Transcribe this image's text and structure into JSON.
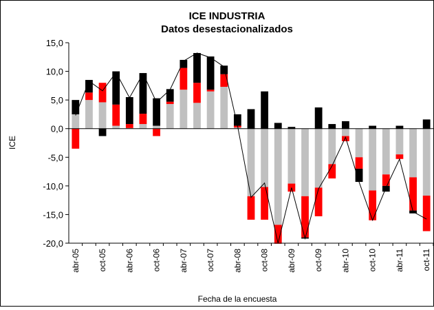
{
  "chart_data": {
    "type": "bar",
    "title": "ICE INDUSTRIA",
    "subtitle": "Datos desestacionalizados",
    "y_label": "ICE",
    "x_label": "Fecha de la encuesta",
    "categories": [
      "abr-05",
      null,
      "oct-05",
      null,
      "abr-06",
      null,
      "oct-06",
      null,
      "abr-07",
      null,
      "oct-07",
      null,
      "abr-08",
      null,
      "oct-08",
      null,
      "abr-09",
      null,
      "oct-09",
      null,
      "abr-10",
      null,
      "oct-10",
      null,
      "abr-11",
      null,
      "oct-11"
    ],
    "series": [
      {
        "type": "bar",
        "color": "#c0c0c0",
        "values": [
          2.5,
          5,
          4.6,
          0.5,
          0.1,
          0.8,
          0.5,
          4.3,
          6.8,
          4.5,
          6.5,
          7.3,
          0.2,
          -11.8,
          -10.2,
          -16.8,
          -9.6,
          -11.8,
          -10.3,
          -6.2,
          -1.3,
          -5,
          -10.8,
          -8,
          -4.5,
          -8.5,
          -11.7
        ]
      },
      {
        "type": "bar",
        "color": "#ff0000",
        "values": [
          -3.5,
          1.3,
          3.4,
          3.7,
          0.7,
          1.8,
          -1.3,
          0.4,
          3.8,
          3.5,
          0.3,
          2.2,
          0.3,
          -4.1,
          -5.7,
          -3.3,
          -1.4,
          -7.2,
          -5,
          -2.5,
          -0.9,
          -2,
          -5.2,
          -2,
          -0.8,
          -5.8,
          -6.2
        ]
      },
      {
        "type": "bar",
        "color": "#000000",
        "values": [
          2.5,
          2.2,
          -1.3,
          5.8,
          4.7,
          7.1,
          4.8,
          2.2,
          1.4,
          5.2,
          5.8,
          1.5,
          2,
          3.4,
          6.5,
          1,
          0.3,
          -0.2,
          3.7,
          0.8,
          1.3,
          -2.3,
          0.5,
          -1,
          0.5,
          -0.5,
          1.6
        ]
      },
      {
        "type": "line",
        "color": "#000000",
        "values": [
          2.3,
          8.3,
          6.6,
          9.8,
          5.4,
          9.6,
          4.6,
          6.8,
          11.8,
          13.2,
          12.4,
          10.8,
          0.5,
          -12,
          -9.5,
          -20,
          -10.3,
          -19.2,
          -10.5,
          -6.5,
          -1.5,
          -9.3,
          -16,
          -10.3,
          -5.3,
          -14.5,
          -15.8
        ]
      }
    ],
    "ylim": [
      -20,
      15
    ],
    "yticks": [
      {
        "value": -20,
        "label": "-20,0"
      },
      {
        "value": -15,
        "label": "-15,0"
      },
      {
        "value": -10,
        "label": "-10,0"
      },
      {
        "value": -5,
        "label": "-5,0"
      },
      {
        "value": 0,
        "label": "0,0"
      },
      {
        "value": 5,
        "label": "5,0"
      },
      {
        "value": 10,
        "label": "10,0"
      },
      {
        "value": 15,
        "label": "15,0"
      }
    ],
    "grid": false
  }
}
